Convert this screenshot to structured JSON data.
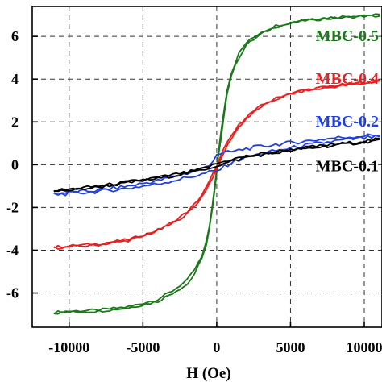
{
  "chart_data": {
    "type": "line",
    "xlabel": "H (Oe)",
    "ylabel": "",
    "xlim": [
      -12500,
      11200
    ],
    "ylim": [
      -7.6,
      7.4
    ],
    "x_ticks": [
      -10000,
      -5000,
      0,
      5000,
      10000
    ],
    "x_tick_labels": [
      "-10000",
      "-5000",
      "0",
      "5000",
      "10000"
    ],
    "y_ticks": [
      -6,
      -4,
      -2,
      0,
      2,
      4,
      6
    ],
    "y_tick_labels": [
      "-6",
      "-4",
      "-2",
      "0",
      "2",
      "4",
      "6"
    ],
    "grid": true,
    "legend": "none",
    "series": [
      {
        "name": "MBC-0.5",
        "color": "#1a7a1a",
        "x": [
          -11000,
          -10000,
          -8000,
          -6000,
          -4000,
          -3000,
          -2000,
          -1500,
          -1000,
          -700,
          -500,
          -300,
          -100,
          0,
          100,
          300,
          500,
          700,
          1000,
          1500,
          2000,
          3000,
          4000,
          6000,
          8000,
          10000,
          11000
        ],
        "y_upper": [
          -6.9,
          -6.85,
          -6.8,
          -6.65,
          -6.3,
          -5.9,
          -5.4,
          -4.9,
          -4.3,
          -3.6,
          -2.9,
          -1.9,
          -0.8,
          -0.2,
          0.5,
          1.6,
          2.6,
          3.5,
          4.3,
          5.2,
          5.7,
          6.2,
          6.5,
          6.8,
          6.9,
          7.0,
          7.0
        ],
        "y_lower": [
          -6.95,
          -6.9,
          -6.85,
          -6.7,
          -6.4,
          -6.0,
          -5.6,
          -5.1,
          -4.4,
          -3.7,
          -3.0,
          -2.1,
          -1.0,
          -0.4,
          0.3,
          1.3,
          2.4,
          3.3,
          4.2,
          5.0,
          5.6,
          6.1,
          6.45,
          6.75,
          6.85,
          6.95,
          6.95
        ]
      },
      {
        "name": "MBC-0.4",
        "color": "#e82020",
        "x": [
          -11000,
          -10000,
          -8000,
          -6000,
          -5000,
          -4000,
          -3000,
          -2000,
          -1500,
          -1000,
          -500,
          0,
          500,
          1000,
          1500,
          2000,
          3000,
          4000,
          5000,
          6000,
          8000,
          10000,
          11000
        ],
        "y_upper": [
          -3.85,
          -3.8,
          -3.7,
          -3.5,
          -3.3,
          -3.05,
          -2.7,
          -2.2,
          -1.85,
          -1.4,
          -0.8,
          -0.05,
          0.75,
          1.35,
          1.85,
          2.25,
          2.75,
          3.1,
          3.35,
          3.5,
          3.7,
          3.85,
          3.95
        ],
        "y_lower": [
          -3.9,
          -3.85,
          -3.75,
          -3.55,
          -3.35,
          -3.1,
          -2.75,
          -2.3,
          -1.95,
          -1.5,
          -0.9,
          -0.2,
          0.6,
          1.25,
          1.75,
          2.15,
          2.7,
          3.05,
          3.3,
          3.45,
          3.65,
          3.8,
          3.9
        ]
      },
      {
        "name": "MBC-0.2",
        "color": "#1f3fe0",
        "x": [
          -11000,
          -10000,
          -8000,
          -6000,
          -4000,
          -2000,
          -1000,
          -500,
          0,
          500,
          1000,
          2000,
          4000,
          6000,
          8000,
          10000,
          11000
        ],
        "y_upper": [
          -1.35,
          -1.3,
          -1.2,
          -1.0,
          -0.75,
          -0.4,
          -0.2,
          -0.05,
          0.5,
          0.55,
          0.6,
          0.75,
          0.95,
          1.1,
          1.25,
          1.35,
          1.4
        ],
        "y_lower": [
          -1.4,
          -1.35,
          -1.25,
          -1.1,
          -0.9,
          -0.6,
          -0.45,
          -0.35,
          -0.3,
          -0.1,
          0.1,
          0.35,
          0.65,
          0.9,
          1.1,
          1.25,
          1.3
        ]
      },
      {
        "name": "MBC-0.1",
        "color": "#000000",
        "x": [
          -11000,
          -10000,
          -8000,
          -6000,
          -4000,
          -2000,
          -1000,
          0,
          1000,
          2000,
          4000,
          6000,
          8000,
          10000,
          11000
        ],
        "y_upper": [
          -1.2,
          -1.15,
          -1.0,
          -0.8,
          -0.6,
          -0.35,
          -0.2,
          0.05,
          0.25,
          0.4,
          0.6,
          0.8,
          0.95,
          1.1,
          1.2
        ],
        "y_lower": [
          -1.25,
          -1.2,
          -1.05,
          -0.85,
          -0.65,
          -0.4,
          -0.25,
          -0.05,
          0.15,
          0.35,
          0.55,
          0.75,
          0.9,
          1.05,
          1.15
        ]
      }
    ]
  }
}
